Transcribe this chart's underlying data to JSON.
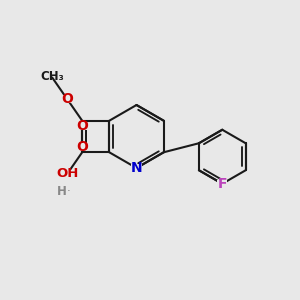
{
  "bg_color": "#e8e8e8",
  "bond_color": "#1a1a1a",
  "bond_width": 1.5,
  "atom_colors": {
    "O": "#cc0000",
    "N": "#0000cc",
    "F": "#bb44bb",
    "H": "#888888",
    "C": "#1a1a1a"
  }
}
